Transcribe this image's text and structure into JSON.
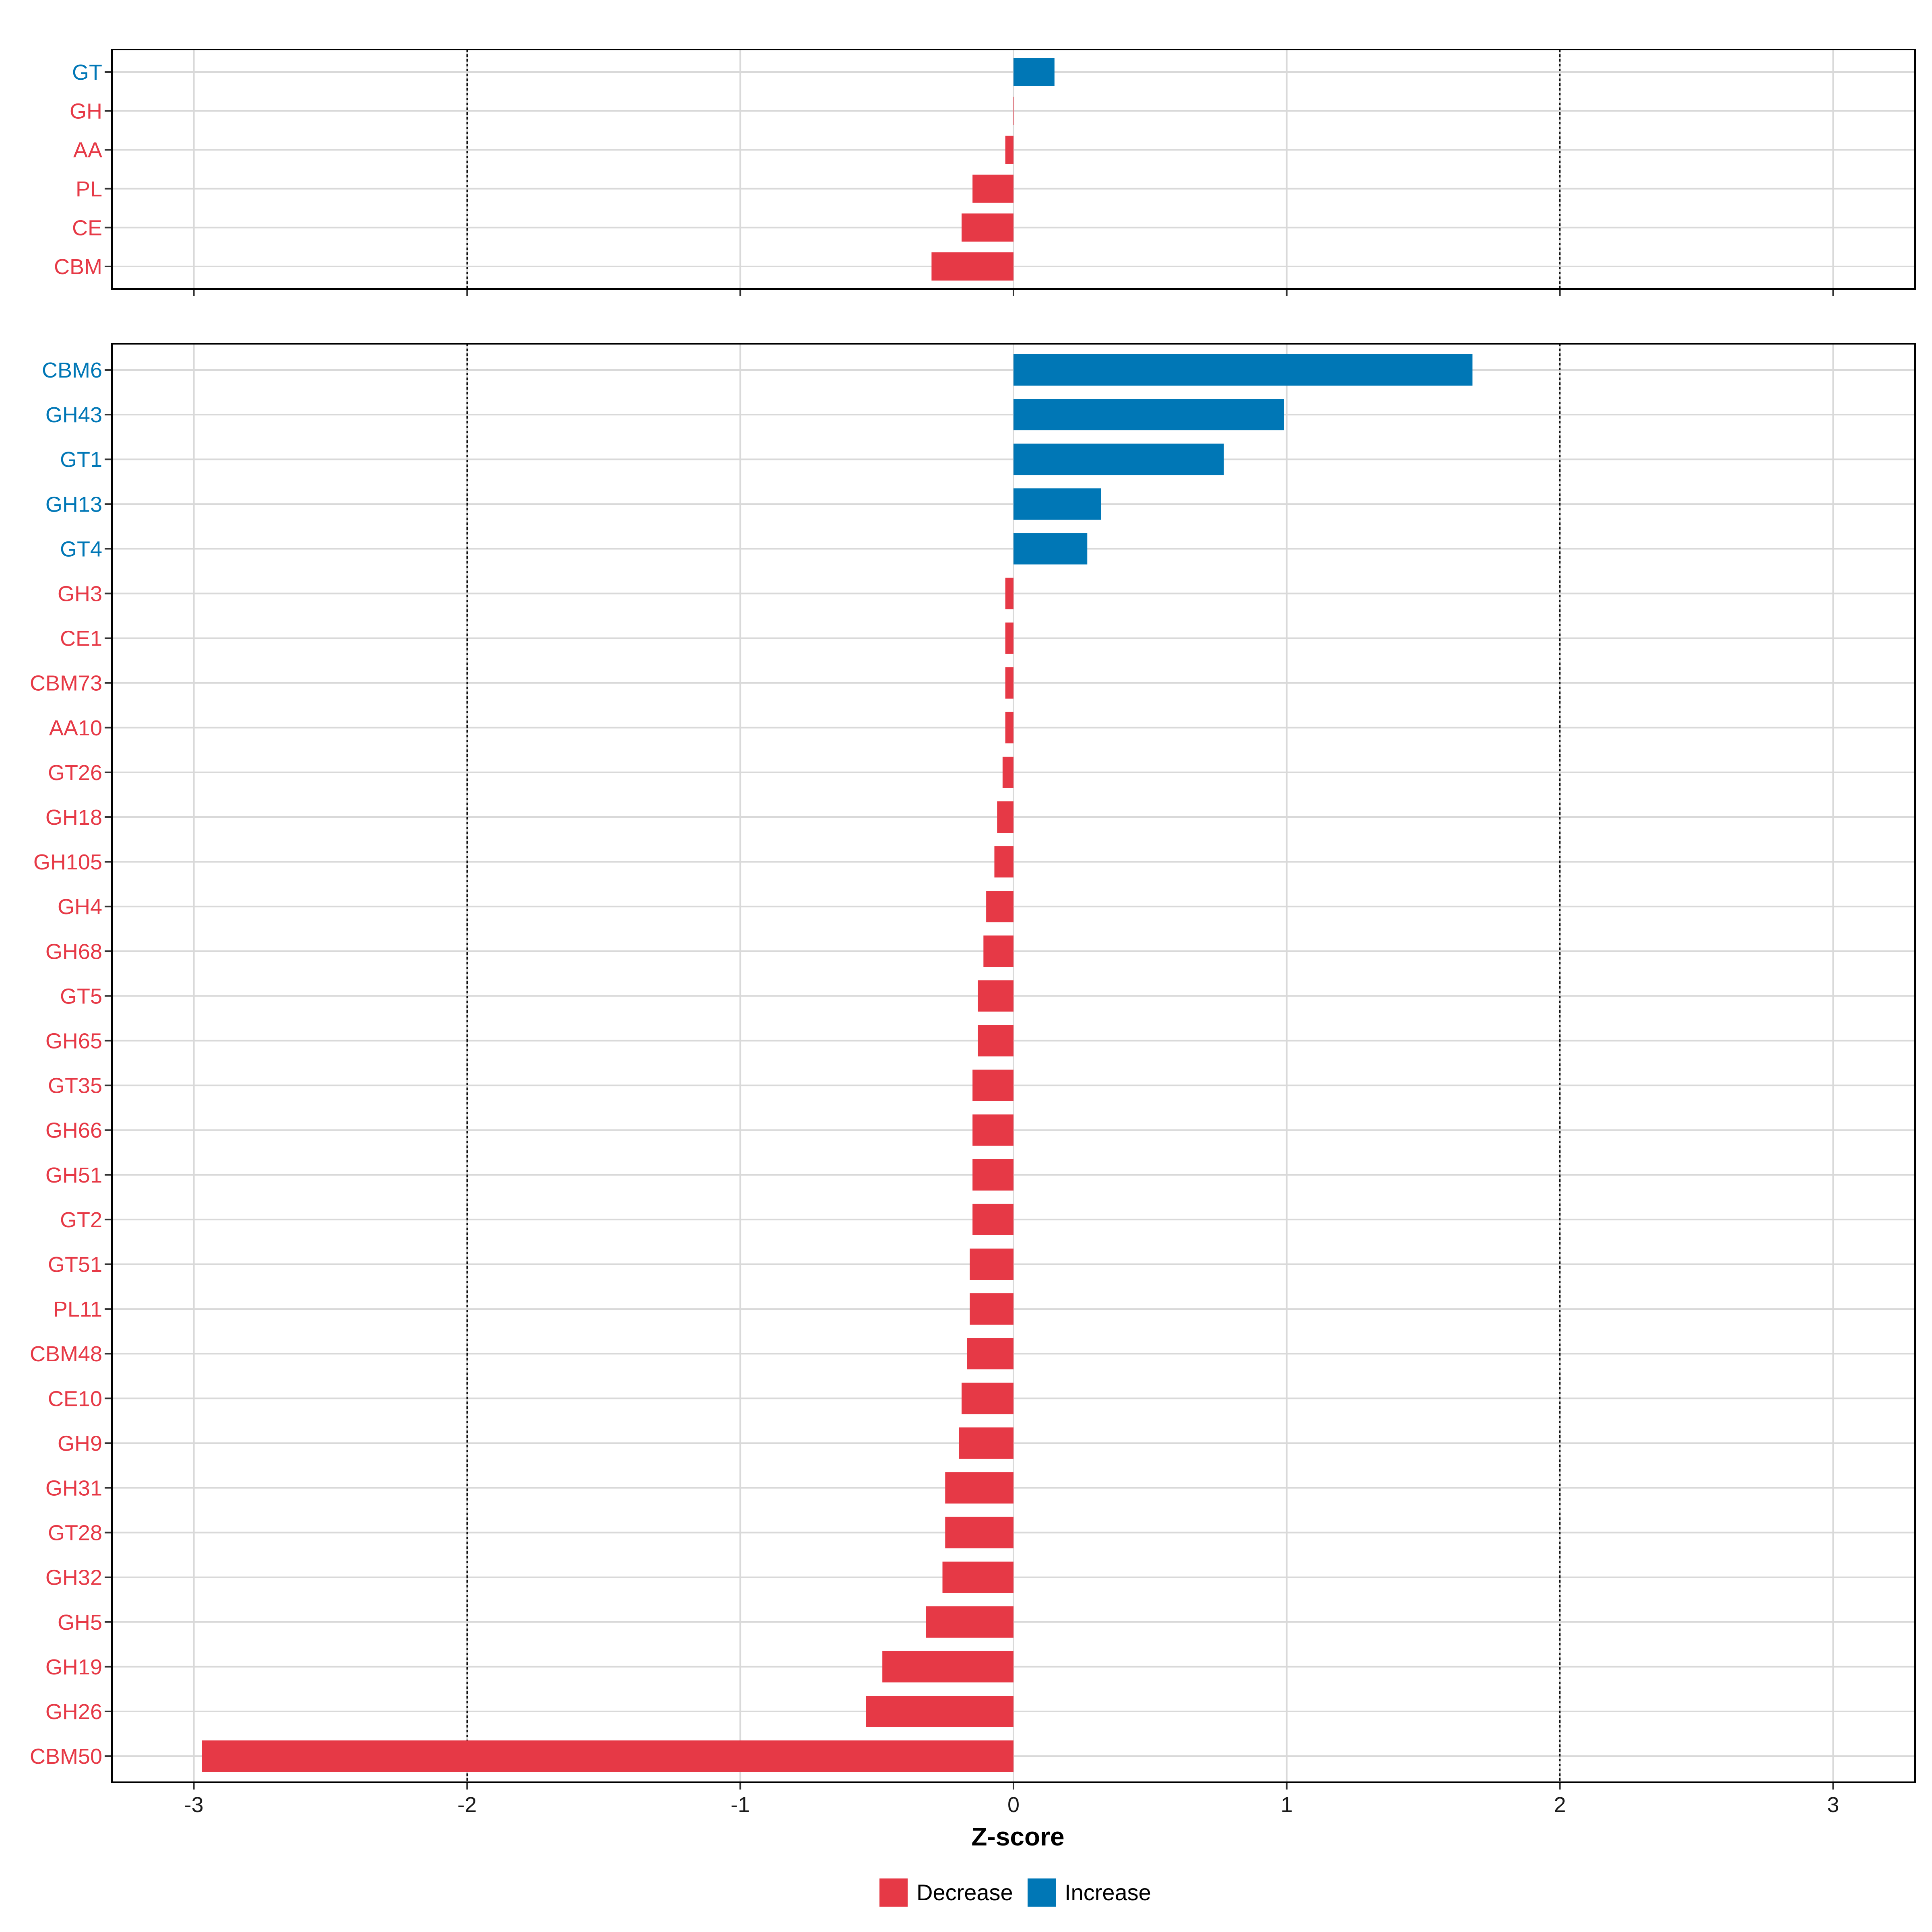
{
  "chart_data": [
    {
      "type": "bar",
      "orientation": "horizontal",
      "panel": "top",
      "categories": [
        "GT",
        "GH",
        "AA",
        "PL",
        "CE",
        "CBM"
      ],
      "values": [
        0.15,
        0.0,
        -0.03,
        -0.15,
        -0.19,
        -0.3
      ],
      "xlim": [
        -3.3,
        3.3
      ],
      "xticks": [
        "-3",
        "-2",
        "-1",
        "0",
        "1",
        "2",
        "3"
      ],
      "reference_lines": [
        -2,
        2
      ],
      "grid": true
    },
    {
      "type": "bar",
      "orientation": "horizontal",
      "panel": "bottom",
      "categories": [
        "CBM6",
        "GH43",
        "GT1",
        "GH13",
        "GT4",
        "GH3",
        "CE1",
        "CBM73",
        "AA10",
        "GT26",
        "GH18",
        "GH105",
        "GH4",
        "GH68",
        "GT5",
        "GH65",
        "GT35",
        "GH66",
        "GH51",
        "GT2",
        "GT51",
        "PL11",
        "CBM48",
        "CE10",
        "GH9",
        "GH31",
        "GT28",
        "GH32",
        "GH5",
        "GH19",
        "GH26",
        "CBM50"
      ],
      "values": [
        1.68,
        0.99,
        0.77,
        0.32,
        0.27,
        -0.03,
        -0.03,
        -0.03,
        -0.03,
        -0.04,
        -0.06,
        -0.07,
        -0.1,
        -0.11,
        -0.13,
        -0.13,
        -0.15,
        -0.15,
        -0.15,
        -0.15,
        -0.16,
        -0.16,
        -0.17,
        -0.19,
        -0.2,
        -0.25,
        -0.25,
        -0.26,
        -0.32,
        -0.48,
        -0.54,
        -2.97
      ],
      "xlim": [
        -3.3,
        3.3
      ],
      "xticks": [
        "-3",
        "-2",
        "-1",
        "0",
        "1",
        "2",
        "3"
      ],
      "xlabel": "Z-score",
      "reference_lines": [
        -2,
        2
      ],
      "grid": true
    }
  ],
  "legend": {
    "position": "bottom",
    "items": [
      {
        "label": "Decrease",
        "color": "#E63946"
      },
      {
        "label": "Increase",
        "color": "#0077B6"
      }
    ]
  },
  "colors": {
    "decrease": "#E63946",
    "increase": "#0077B6",
    "grid": "#D9D9D9",
    "frame": "#000000",
    "axis_text": "#1a1a1a"
  }
}
